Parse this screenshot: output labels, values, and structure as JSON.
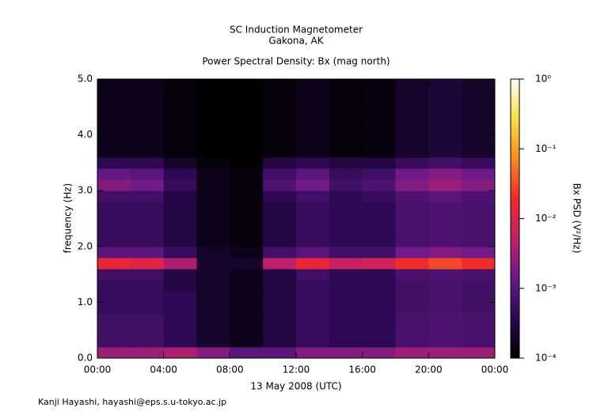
{
  "chart_data": {
    "type": "heatmap",
    "title": [
      "SC Induction Magnetometer",
      "Gakona, AK"
    ],
    "subtitle": "Power Spectral Density: Bx (mag north)",
    "xlabel": "13 May 2008 (UTC)",
    "ylabel": "frequency (Hz)",
    "colorbar_label": "Bx PSD (V²/Hz)",
    "footer": "Kanji Hayashi, hayashi@eps.s.u-tokyo.ac.jp",
    "xlim": [
      0,
      24
    ],
    "xticks": [
      {
        "value": 0,
        "label": "00:00"
      },
      {
        "value": 4,
        "label": "04:00"
      },
      {
        "value": 8,
        "label": "08:00"
      },
      {
        "value": 12,
        "label": "12:00"
      },
      {
        "value": 16,
        "label": "16:00"
      },
      {
        "value": 20,
        "label": "20:00"
      },
      {
        "value": 24,
        "label": "00:00"
      }
    ],
    "ylim": [
      0,
      5
    ],
    "yticks": [
      {
        "value": 0,
        "label": "0.0"
      },
      {
        "value": 1,
        "label": "1.0"
      },
      {
        "value": 2,
        "label": "2.0"
      },
      {
        "value": 3,
        "label": "3.0"
      },
      {
        "value": 4,
        "label": "4.0"
      },
      {
        "value": 5,
        "label": "5.0"
      }
    ],
    "zlim": [
      0.0001,
      1
    ],
    "zscale": "log",
    "zticks": [
      {
        "value": 1,
        "label": "10⁰"
      },
      {
        "value": 0.1,
        "label": "10⁻¹"
      },
      {
        "value": 0.01,
        "label": "10⁻²"
      },
      {
        "value": 0.001,
        "label": "10⁻³"
      },
      {
        "value": 0.0001,
        "label": "10⁻⁴"
      }
    ],
    "colormap": [
      "#000000",
      "#2a0850",
      "#6a1a8a",
      "#c0206a",
      "#f0282a",
      "#f78a1e",
      "#f5e040",
      "#ffffff"
    ],
    "x_edges": [
      0,
      2,
      4,
      6,
      8,
      10,
      12,
      14,
      16,
      18,
      20,
      22,
      24
    ],
    "y_edges": [
      0,
      0.2,
      0.4,
      0.6,
      0.8,
      1.0,
      1.2,
      1.4,
      1.6,
      1.8,
      2.0,
      2.2,
      2.4,
      2.6,
      2.8,
      3.0,
      3.2,
      3.4,
      3.6,
      3.8,
      4.0,
      4.2,
      4.4,
      4.6,
      4.8,
      5.0
    ],
    "z": [
      [
        0.003,
        0.003,
        0.004,
        0.002,
        0.001,
        0.001,
        0.002,
        0.002,
        0.002,
        0.003,
        0.003,
        0.003
      ],
      [
        0.0006,
        0.0006,
        0.0004,
        0.0002,
        0.00015,
        0.0003,
        0.0005,
        0.0004,
        0.0004,
        0.0007,
        0.0008,
        0.0007
      ],
      [
        0.0006,
        0.0006,
        0.0004,
        0.0002,
        0.00015,
        0.0003,
        0.0005,
        0.0004,
        0.0004,
        0.0007,
        0.0008,
        0.0007
      ],
      [
        0.0006,
        0.0006,
        0.0004,
        0.0002,
        0.00015,
        0.0003,
        0.0005,
        0.0004,
        0.0004,
        0.0007,
        0.0008,
        0.0007
      ],
      [
        0.0005,
        0.0005,
        0.0004,
        0.0002,
        0.00015,
        0.0003,
        0.0005,
        0.0004,
        0.0004,
        0.0006,
        0.0007,
        0.0006
      ],
      [
        0.0005,
        0.0005,
        0.0004,
        0.0002,
        0.00015,
        0.0003,
        0.0005,
        0.0004,
        0.0004,
        0.0006,
        0.0007,
        0.0006
      ],
      [
        0.0005,
        0.0005,
        0.0003,
        0.0002,
        0.00015,
        0.0003,
        0.0005,
        0.0004,
        0.0004,
        0.0006,
        0.0007,
        0.0006
      ],
      [
        0.0006,
        0.0006,
        0.0003,
        0.0002,
        0.00015,
        0.0003,
        0.0006,
        0.0004,
        0.0004,
        0.0007,
        0.0008,
        0.0007
      ],
      [
        0.015,
        0.012,
        0.004,
        0.0002,
        0.0002,
        0.005,
        0.015,
        0.006,
        0.008,
        0.02,
        0.03,
        0.02
      ],
      [
        0.001,
        0.001,
        0.0005,
        0.0002,
        0.00015,
        0.0006,
        0.001,
        0.0006,
        0.0006,
        0.0015,
        0.002,
        0.0015
      ],
      [
        0.0005,
        0.0005,
        0.0003,
        0.00015,
        0.00012,
        0.0003,
        0.0005,
        0.0004,
        0.0004,
        0.0007,
        0.0008,
        0.0007
      ],
      [
        0.0005,
        0.0005,
        0.0003,
        0.00015,
        0.00012,
        0.0003,
        0.0005,
        0.0004,
        0.0004,
        0.0007,
        0.0008,
        0.0007
      ],
      [
        0.0005,
        0.0005,
        0.0003,
        0.00015,
        0.00012,
        0.0003,
        0.0005,
        0.0004,
        0.0004,
        0.0007,
        0.0008,
        0.0007
      ],
      [
        0.0005,
        0.0005,
        0.0003,
        0.00015,
        0.00012,
        0.0003,
        0.0005,
        0.0004,
        0.0004,
        0.0007,
        0.0008,
        0.0007
      ],
      [
        0.0006,
        0.0006,
        0.0003,
        0.00015,
        0.00012,
        0.0004,
        0.0006,
        0.0004,
        0.0005,
        0.0008,
        0.001,
        0.0008
      ],
      [
        0.002,
        0.0015,
        0.0005,
        0.00015,
        0.00012,
        0.0008,
        0.0015,
        0.0006,
        0.0008,
        0.002,
        0.003,
        0.002
      ],
      [
        0.0012,
        0.001,
        0.0004,
        0.00015,
        0.00012,
        0.0006,
        0.001,
        0.0005,
        0.0006,
        0.0015,
        0.002,
        0.0015
      ],
      [
        0.0004,
        0.0004,
        0.0002,
        0.00012,
        0.0001,
        0.0003,
        0.0004,
        0.0003,
        0.0003,
        0.0005,
        0.0006,
        0.0005
      ],
      [
        0.00015,
        0.00015,
        0.00012,
        0.0001,
        0.0001,
        0.00012,
        0.00015,
        0.00012,
        0.00013,
        0.0002,
        0.00025,
        0.0002
      ],
      [
        0.00015,
        0.00015,
        0.00012,
        0.0001,
        0.0001,
        0.00012,
        0.00015,
        0.00012,
        0.00013,
        0.0002,
        0.00025,
        0.0002
      ],
      [
        0.00015,
        0.00015,
        0.00012,
        0.0001,
        0.0001,
        0.00012,
        0.00015,
        0.00012,
        0.00013,
        0.0002,
        0.00025,
        0.0002
      ],
      [
        0.00015,
        0.00015,
        0.00012,
        0.0001,
        0.0001,
        0.00012,
        0.00015,
        0.00012,
        0.00013,
        0.0002,
        0.00025,
        0.0002
      ],
      [
        0.00015,
        0.00015,
        0.00012,
        0.0001,
        0.0001,
        0.00012,
        0.00015,
        0.00012,
        0.00013,
        0.0002,
        0.00025,
        0.0002
      ],
      [
        0.00015,
        0.00015,
        0.00012,
        0.0001,
        0.0001,
        0.00012,
        0.00015,
        0.00012,
        0.00013,
        0.0002,
        0.00025,
        0.0002
      ],
      [
        0.00015,
        0.00015,
        0.00012,
        0.0001,
        0.0001,
        0.00012,
        0.00015,
        0.00012,
        0.00013,
        0.0002,
        0.00025,
        0.0002
      ]
    ]
  }
}
